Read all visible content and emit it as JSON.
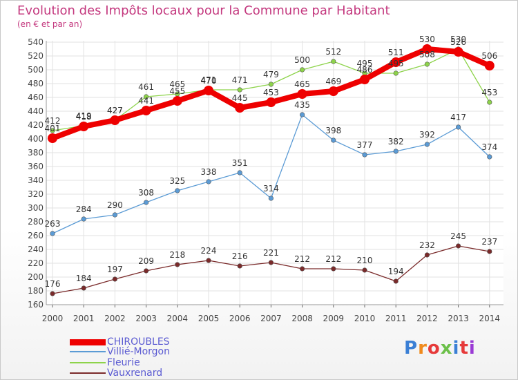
{
  "title": "Evolution des Impôts locaux pour la Commune par Habitant",
  "subtitle": "(en € et par an)",
  "logo_text": "Proxiti",
  "chart_data": {
    "type": "line",
    "x": [
      "2000",
      "2001",
      "2002",
      "2003",
      "2004",
      "2005",
      "2006",
      "2007",
      "2008",
      "2009",
      "2010",
      "2011",
      "2012",
      "2013",
      "2014"
    ],
    "ylim": [
      160,
      540
    ],
    "yticks": [
      160,
      180,
      200,
      220,
      240,
      260,
      280,
      300,
      320,
      340,
      360,
      380,
      400,
      420,
      440,
      460,
      480,
      500,
      520,
      540
    ],
    "grid": true,
    "legend_position": "bottom-left",
    "series": [
      {
        "name": "CHIROUBLES",
        "color": "#ee0000",
        "values": [
          401,
          418,
          427,
          441,
          455,
          470,
          445,
          453,
          465,
          469,
          486,
          511,
          530,
          526,
          506
        ]
      },
      {
        "name": "Villié-Morgon",
        "color": "#5b9bd5",
        "values": [
          263,
          284,
          290,
          308,
          325,
          338,
          351,
          314,
          435,
          398,
          377,
          382,
          392,
          417,
          374
        ]
      },
      {
        "name": "Fleurie",
        "color": "#8dd34a",
        "values": [
          412,
          419,
          427,
          461,
          465,
          471,
          471,
          479,
          500,
          512,
          495,
          495,
          508,
          530,
          453
        ]
      },
      {
        "name": "Vauxrenard",
        "color": "#7a2a2a",
        "values": [
          176,
          184,
          197,
          209,
          218,
          224,
          216,
          221,
          212,
          212,
          210,
          194,
          232,
          245,
          237
        ]
      }
    ]
  }
}
